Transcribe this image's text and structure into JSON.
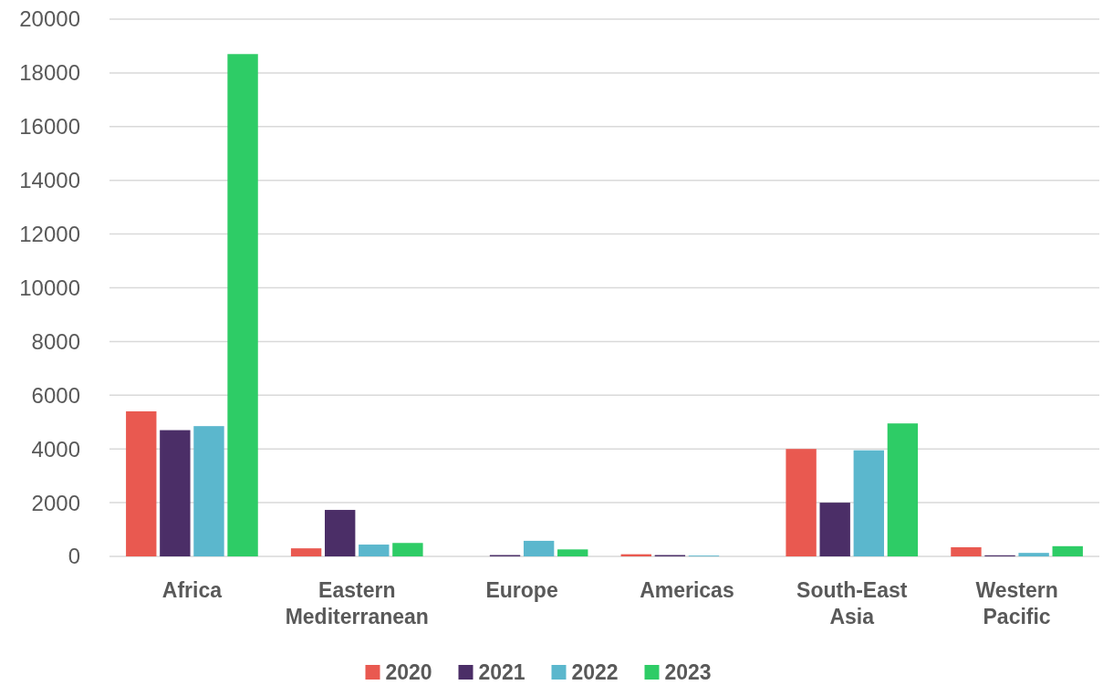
{
  "chart_data": {
    "type": "bar",
    "categories": [
      "Africa",
      "Eastern Mediterranean",
      "Europe",
      "Americas",
      "South-East Asia",
      "Western Pacific"
    ],
    "series": [
      {
        "name": "2020",
        "color": "#e95950",
        "values": [
          5400,
          300,
          0,
          80,
          4000,
          340
        ]
      },
      {
        "name": "2021",
        "color": "#4b2e67",
        "values": [
          4700,
          1730,
          50,
          50,
          2000,
          40
        ]
      },
      {
        "name": "2022",
        "color": "#5bb7cd",
        "values": [
          4850,
          440,
          580,
          30,
          3950,
          130
        ]
      },
      {
        "name": "2023",
        "color": "#2ecc66",
        "values": [
          18700,
          500,
          260,
          0,
          4950,
          380
        ]
      }
    ],
    "ylim": [
      0,
      20000
    ],
    "yticks": [
      0,
      2000,
      4000,
      6000,
      8000,
      10000,
      12000,
      14000,
      16000,
      18000,
      20000
    ],
    "grid": "y",
    "legend": "bottom"
  }
}
